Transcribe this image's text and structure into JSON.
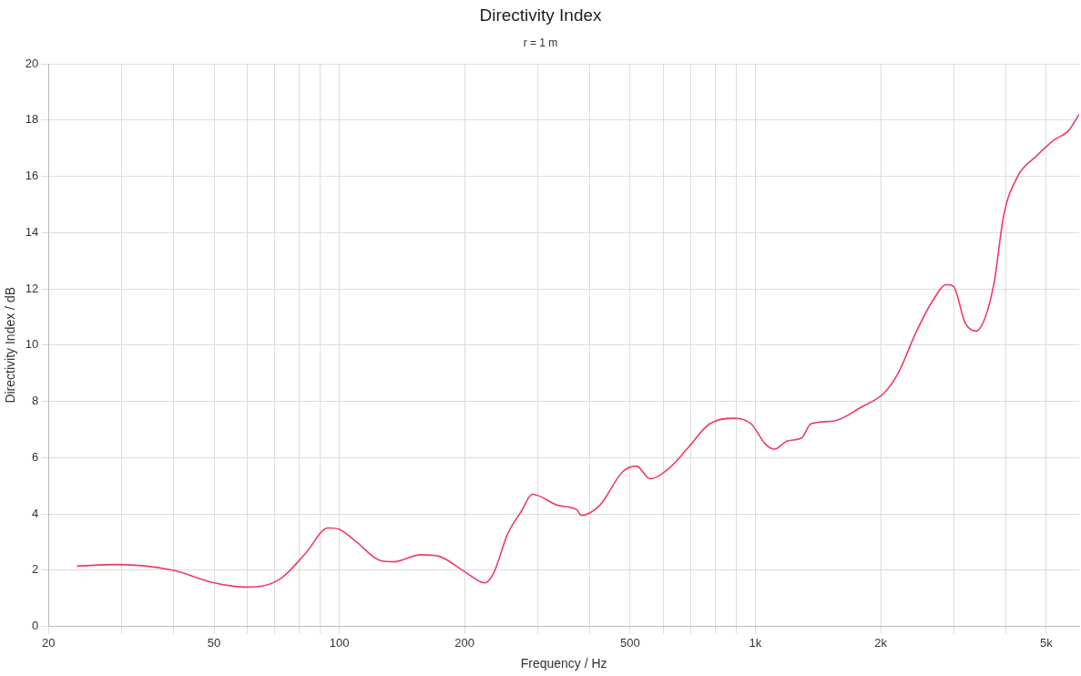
{
  "chart_data": {
    "type": "line",
    "title": "Directivity Index",
    "subtitle": "r = 1 m",
    "xlabel": "Frequency / Hz",
    "ylabel": "Directivity Index / dB",
    "log": "x",
    "grid": true,
    "legend": false,
    "marker": "none",
    "line_style": "solid",
    "xlim": [
      20,
      6000
    ],
    "xticks": [
      20,
      {
        "value": 30,
        "label": null
      },
      {
        "value": 40,
        "label": null
      },
      50,
      {
        "value": 60,
        "label": null
      },
      {
        "value": 70,
        "label": null
      },
      {
        "value": 80,
        "label": null
      },
      {
        "value": 90,
        "label": null
      },
      100,
      200,
      {
        "value": 300,
        "label": null
      },
      {
        "value": 400,
        "label": null
      },
      500,
      {
        "value": 600,
        "label": null
      },
      {
        "value": 700,
        "label": null
      },
      {
        "value": 800,
        "label": null
      },
      {
        "value": 900,
        "label": null
      },
      {
        "value": 1000,
        "label": "1k"
      },
      {
        "value": 2000,
        "label": "2k"
      },
      {
        "value": 3000,
        "label": null
      },
      {
        "value": 4000,
        "label": null
      },
      {
        "value": 5000,
        "label": "5k"
      }
    ],
    "ylim": [
      0,
      20
    ],
    "yticks": [
      0,
      2,
      4,
      6,
      8,
      10,
      12,
      14,
      16,
      18,
      20
    ],
    "series": [
      {
        "color": "#f03c64",
        "x": [
          23.4,
          29.3,
          39.7,
          50,
          59.7,
          66,
          73,
          83,
          94,
          100,
          110,
          125,
          135,
          157,
          173,
          200,
          224,
          235,
          254,
          274,
          291,
          336,
          372,
          381,
          422,
          480,
          518,
          558,
          618,
          684,
          776,
          883,
          977,
          1054,
          1109,
          1197,
          1291,
          1359,
          1542,
          1798,
          2040,
          2204,
          2440,
          2700,
          2870,
          2990,
          3190,
          3390,
          3570,
          3755,
          3950,
          4270,
          4720,
          5230,
          5640,
          6000
        ],
        "values": [
          2.15,
          2.2,
          2.0,
          1.55,
          1.4,
          1.45,
          1.75,
          2.6,
          3.5,
          3.45,
          3.0,
          2.35,
          2.3,
          2.55,
          2.5,
          1.95,
          1.55,
          1.9,
          3.3,
          4.1,
          4.7,
          4.3,
          4.15,
          3.95,
          4.3,
          5.5,
          5.7,
          5.25,
          5.6,
          6.3,
          7.2,
          7.4,
          7.2,
          6.5,
          6.3,
          6.6,
          6.7,
          7.2,
          7.3,
          7.8,
          8.3,
          9.0,
          10.5,
          11.7,
          12.15,
          12.1,
          10.8,
          10.5,
          11.0,
          12.3,
          14.6,
          16.0,
          16.7,
          17.3,
          17.6,
          18.2
        ]
      }
    ]
  }
}
